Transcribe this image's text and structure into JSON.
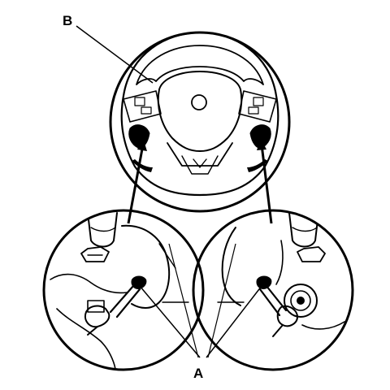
{
  "labels": {
    "b": "B",
    "a": "A"
  },
  "colors": {
    "ink": "#000000",
    "background": "#ffffff"
  }
}
